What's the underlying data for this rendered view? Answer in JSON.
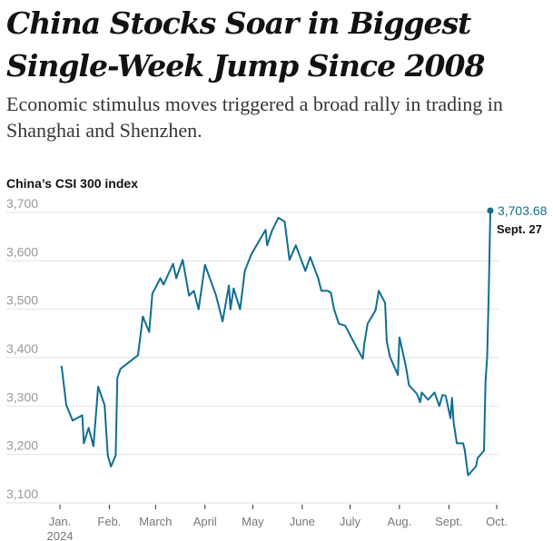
{
  "headline": "China Stocks Soar in Biggest Single-Week Jump Since 2008",
  "subheadline": "Economic stimulus moves triggered a broad rally in trading in Shanghai and Shenzhen.",
  "colors": {
    "line": "#0f6e92",
    "grid": "#e2e2e2",
    "tick_text": "#999999"
  },
  "chart_data": {
    "type": "line",
    "title": "China’s CSI 300 index",
    "ylim": [
      3100,
      3700
    ],
    "yticks": [
      3100,
      3200,
      3300,
      3400,
      3500,
      3600,
      3700
    ],
    "ytick_labels": [
      "3,100",
      "3,200",
      "3,300",
      "3,400",
      "3,500",
      "3,600",
      "3,700"
    ],
    "xlim": [
      "2024-01-01",
      "2024-10-01"
    ],
    "xticks": [
      "2024-01-01",
      "2024-02-01",
      "2024-03-01",
      "2024-04-01",
      "2024-05-01",
      "2024-06-01",
      "2024-07-01",
      "2024-08-01",
      "2024-09-01",
      "2024-10-01"
    ],
    "xtick_labels": [
      "Jan.",
      "Feb.",
      "March",
      "April",
      "May",
      "June",
      "July",
      "Aug.",
      "Sept.",
      "Oct."
    ],
    "xtick_year": "2024",
    "grid": true,
    "annotation": {
      "value_label": "3,703.68",
      "date_label": "Sept. 27"
    },
    "points": [
      [
        "2024-01-02",
        3383
      ],
      [
        "2024-01-05",
        3302
      ],
      [
        "2024-01-09",
        3270
      ],
      [
        "2024-01-15",
        3281
      ],
      [
        "2024-01-16",
        3223
      ],
      [
        "2024-01-19",
        3255
      ],
      [
        "2024-01-22",
        3217
      ],
      [
        "2024-01-25",
        3340
      ],
      [
        "2024-01-29",
        3302
      ],
      [
        "2024-01-31",
        3198
      ],
      [
        "2024-02-02",
        3175
      ],
      [
        "2024-02-05",
        3198
      ],
      [
        "2024-02-06",
        3358
      ],
      [
        "2024-02-08",
        3377
      ],
      [
        "2024-02-19",
        3405
      ],
      [
        "2024-02-22",
        3485
      ],
      [
        "2024-02-26",
        3453
      ],
      [
        "2024-02-28",
        3532
      ],
      [
        "2024-03-04",
        3564
      ],
      [
        "2024-03-06",
        3551
      ],
      [
        "2024-03-12",
        3594
      ],
      [
        "2024-03-14",
        3564
      ],
      [
        "2024-03-18",
        3602
      ],
      [
        "2024-03-22",
        3528
      ],
      [
        "2024-03-25",
        3538
      ],
      [
        "2024-03-28",
        3500
      ],
      [
        "2024-04-01",
        3592
      ],
      [
        "2024-04-08",
        3528
      ],
      [
        "2024-04-12",
        3475
      ],
      [
        "2024-04-16",
        3549
      ],
      [
        "2024-04-17",
        3500
      ],
      [
        "2024-04-19",
        3543
      ],
      [
        "2024-04-23",
        3500
      ],
      [
        "2024-04-26",
        3579
      ],
      [
        "2024-04-30",
        3613
      ],
      [
        "2024-05-06",
        3647
      ],
      [
        "2024-05-09",
        3664
      ],
      [
        "2024-05-10",
        3632
      ],
      [
        "2024-05-13",
        3662
      ],
      [
        "2024-05-17",
        3689
      ],
      [
        "2024-05-21",
        3681
      ],
      [
        "2024-05-24",
        3602
      ],
      [
        "2024-05-28",
        3632
      ],
      [
        "2024-06-03",
        3579
      ],
      [
        "2024-06-06",
        3608
      ],
      [
        "2024-06-11",
        3564
      ],
      [
        "2024-06-13",
        3538
      ],
      [
        "2024-06-17",
        3538
      ],
      [
        "2024-06-19",
        3534
      ],
      [
        "2024-06-21",
        3500
      ],
      [
        "2024-06-24",
        3470
      ],
      [
        "2024-06-28",
        3466
      ],
      [
        "2024-07-04",
        3428
      ],
      [
        "2024-07-09",
        3398
      ],
      [
        "2024-07-10",
        3430
      ],
      [
        "2024-07-12",
        3470
      ],
      [
        "2024-07-17",
        3498
      ],
      [
        "2024-07-19",
        3538
      ],
      [
        "2024-07-23",
        3513
      ],
      [
        "2024-07-24",
        3434
      ],
      [
        "2024-07-26",
        3402
      ],
      [
        "2024-07-31",
        3364
      ],
      [
        "2024-08-01",
        3442
      ],
      [
        "2024-08-05",
        3383
      ],
      [
        "2024-08-07",
        3343
      ],
      [
        "2024-08-12",
        3325
      ],
      [
        "2024-08-14",
        3308
      ],
      [
        "2024-08-15",
        3328
      ],
      [
        "2024-08-19",
        3313
      ],
      [
        "2024-08-23",
        3328
      ],
      [
        "2024-08-26",
        3300
      ],
      [
        "2024-08-28",
        3323
      ],
      [
        "2024-08-30",
        3321
      ],
      [
        "2024-09-02",
        3275
      ],
      [
        "2024-09-03",
        3317
      ],
      [
        "2024-09-04",
        3266
      ],
      [
        "2024-09-06",
        3223
      ],
      [
        "2024-09-10",
        3223
      ],
      [
        "2024-09-11",
        3208
      ],
      [
        "2024-09-13",
        3157
      ],
      [
        "2024-09-18",
        3175
      ],
      [
        "2024-09-19",
        3192
      ],
      [
        "2024-09-23",
        3208
      ],
      [
        "2024-09-24",
        3351
      ],
      [
        "2024-09-25",
        3401
      ],
      [
        "2024-09-26",
        3531
      ],
      [
        "2024-09-27",
        3703.68
      ]
    ]
  }
}
